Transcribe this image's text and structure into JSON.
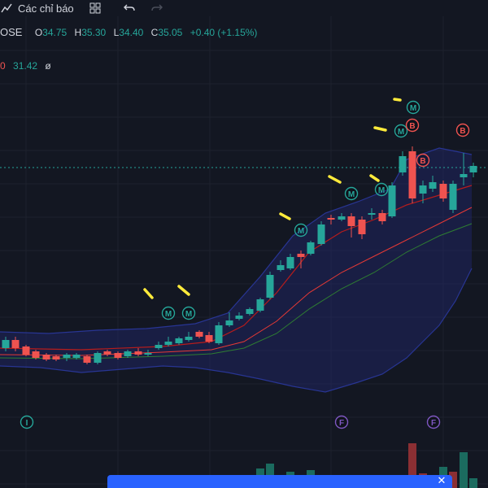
{
  "toolbar": {
    "indicators_label": "Các chỉ báo",
    "icons": [
      "indicators-icon",
      "layout-grid-icon",
      "undo-icon",
      "redo-icon"
    ]
  },
  "legend": {
    "symbol": "OSE",
    "open_key": "O",
    "open": "34.75",
    "high_key": "H",
    "high": "35.30",
    "low_key": "L",
    "low": "34.40",
    "close_key": "C",
    "close": "35.05",
    "change": "+0.40 (+1.15%)"
  },
  "indicator": {
    "value_red": "0",
    "value_green": "31.42",
    "eye_icon": "ø"
  },
  "markers": {
    "m": "M",
    "b": "B",
    "f": "F",
    "i": "I"
  },
  "notification": {
    "text": "",
    "close_icon": "close-icon"
  },
  "colors": {
    "background": "#131722",
    "up": "#26a69a",
    "down": "#ef5350",
    "band": "#1e2a78",
    "annotation": "#ffeb3b",
    "notification": "#2962ff",
    "f_marker": "#7e57c2",
    "b_marker": "#ef5350"
  }
}
